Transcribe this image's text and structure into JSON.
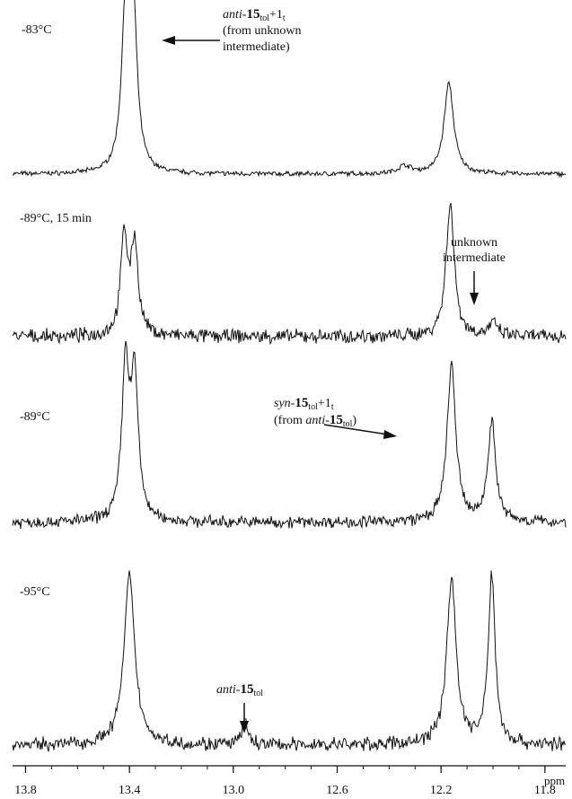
{
  "chart_data": {
    "type": "line",
    "x_unit": "ppm",
    "x_axis_reversed": true,
    "xlim": [
      13.85,
      11.72
    ],
    "x_ticks": [
      13.8,
      13.4,
      13.0,
      12.6,
      12.2,
      11.8
    ],
    "x_tick_labels": [
      "13.8",
      "13.4",
      "13.0",
      "12.6",
      "12.2",
      "11.8"
    ],
    "grid": false,
    "series": [
      {
        "name": "-83°C",
        "peaks": [
          {
            "ppm": 13.415,
            "height": 0.98,
            "width": 0.018
          },
          {
            "ppm": 13.385,
            "height": 0.96,
            "width": 0.018
          },
          {
            "ppm": 12.17,
            "height": 0.58,
            "width": 0.022
          },
          {
            "ppm": 12.34,
            "height": 0.05,
            "width": 0.03
          }
        ],
        "noise": 0.012
      },
      {
        "name": "-89°C, 15 min",
        "peaks": [
          {
            "ppm": 13.42,
            "height": 0.63,
            "width": 0.016
          },
          {
            "ppm": 13.38,
            "height": 0.58,
            "width": 0.016
          },
          {
            "ppm": 12.165,
            "height": 0.85,
            "width": 0.019
          },
          {
            "ppm": 12.0,
            "height": 0.08,
            "width": 0.02
          }
        ],
        "noise": 0.035
      },
      {
        "name": "-89°C",
        "peaks": [
          {
            "ppm": 13.415,
            "height": 0.97,
            "width": 0.017
          },
          {
            "ppm": 13.38,
            "height": 0.88,
            "width": 0.017
          },
          {
            "ppm": 12.16,
            "height": 1.0,
            "width": 0.02
          },
          {
            "ppm": 12.005,
            "height": 0.64,
            "width": 0.018
          }
        ],
        "noise": 0.03
      },
      {
        "name": "-95°C",
        "peaks": [
          {
            "ppm": 13.4,
            "height": 1.07,
            "width": 0.025
          },
          {
            "ppm": 12.955,
            "height": 0.16,
            "width": 0.012
          },
          {
            "ppm": 12.16,
            "height": 1.05,
            "width": 0.022
          },
          {
            "ppm": 12.005,
            "height": 1.07,
            "width": 0.016
          }
        ],
        "noise": 0.035
      }
    ],
    "annotations": {
      "a83_1": "anti",
      "a83_2": "-",
      "a83_3": "15",
      "a83_4": "tol",
      "a83_5": "+1",
      "a83_6": "t",
      "a83_line2": "(from unknown",
      "a83_line3": "intermediate)",
      "unk_1": "unknown",
      "unk_2": "intermediate",
      "syn_1": "syn",
      "syn_2": "-",
      "syn_3": "15",
      "syn_4": "tol",
      "syn_5": "+1",
      "syn_6": "t",
      "syn_7": "(from ",
      "syn_8": "anti",
      "syn_9": "-",
      "syn_10": "15",
      "syn_11": "tol",
      "syn_12": ")",
      "anti_1": "anti",
      "anti_2": "-",
      "anti_3": "15",
      "anti_4": "tol"
    }
  }
}
